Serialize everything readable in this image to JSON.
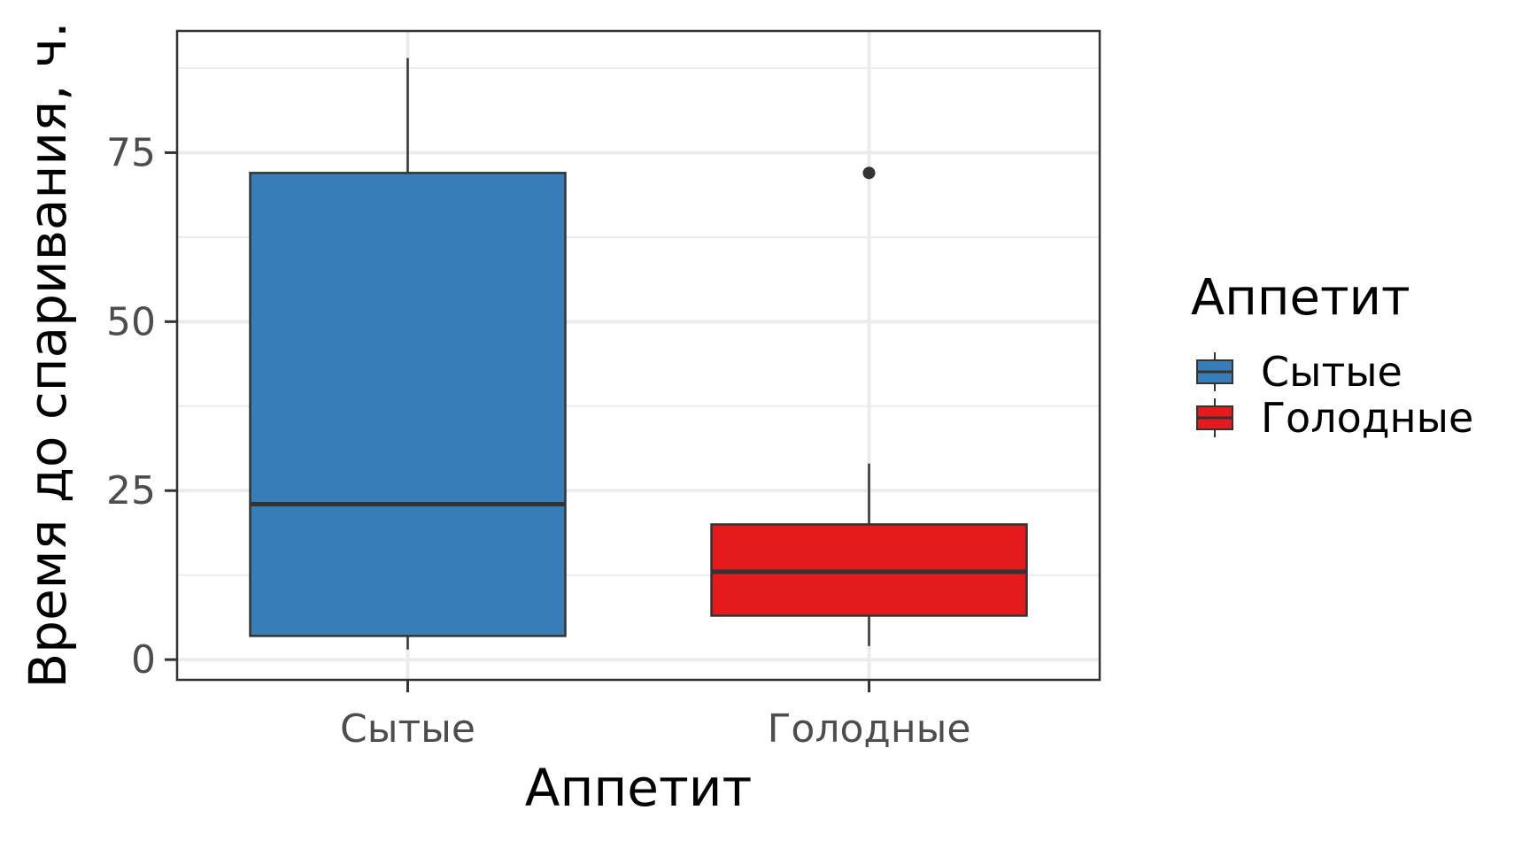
{
  "chart_data": {
    "type": "boxplot",
    "xlabel": "Аппетит",
    "ylabel": "Время до спаривания, ч.",
    "categories": [
      "Сытые",
      "Голодные"
    ],
    "yticks": [
      0,
      25,
      50,
      75
    ],
    "ylim": [
      -3,
      93
    ],
    "grid": true,
    "legend": {
      "title": "Аппетит",
      "placement": "right",
      "items": [
        "Сытые",
        "Голодные"
      ]
    },
    "series": [
      {
        "category": "Сытые",
        "color": "#377eb8",
        "whisker_low": 1.5,
        "q1": 3.5,
        "median": 23,
        "q3": 72,
        "whisker_high": 89,
        "outliers": []
      },
      {
        "category": "Голодные",
        "color": "#e41a1c",
        "whisker_low": 2,
        "q1": 6.5,
        "median": 13,
        "q3": 20,
        "whisker_high": 29,
        "outliers": [
          72
        ]
      }
    ]
  }
}
